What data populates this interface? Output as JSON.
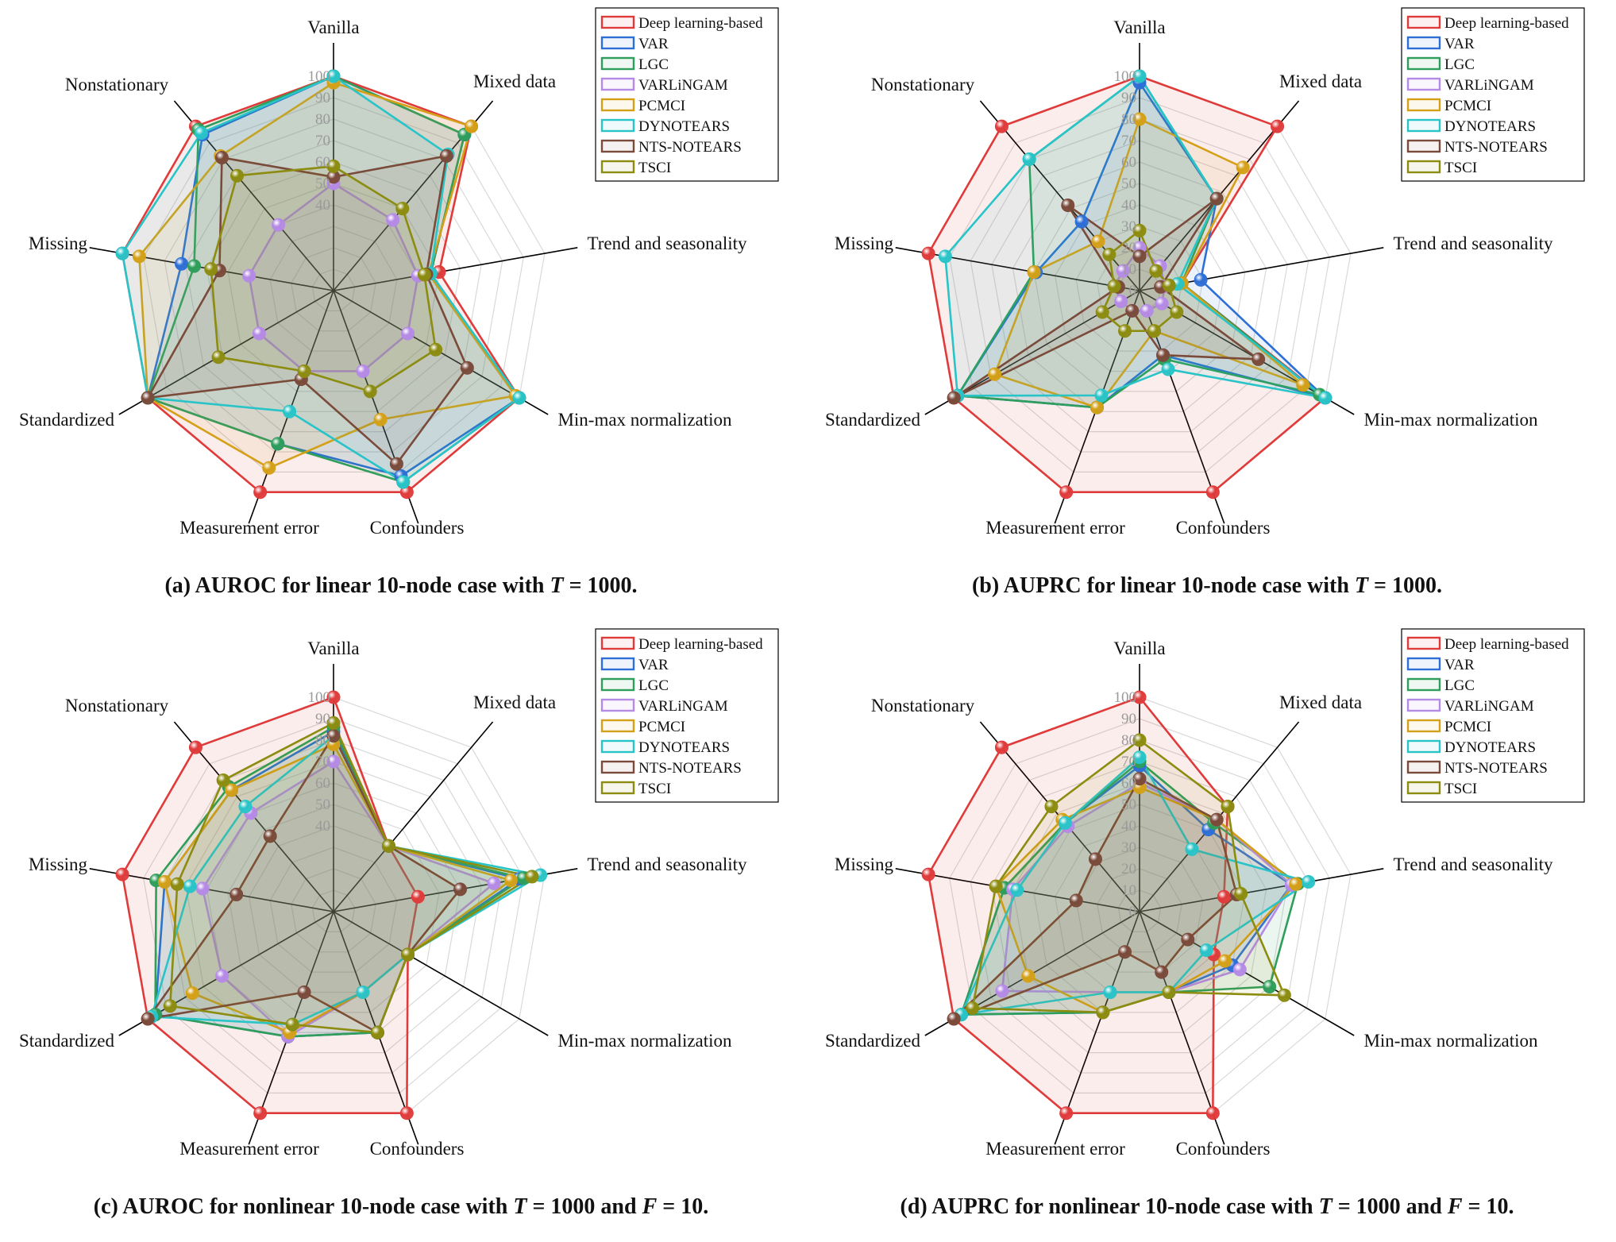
{
  "chart_data": [
    {
      "type": "radar",
      "caption_parts": [
        "(a) AUROC for linear 10-node case with ",
        "T",
        " = 1000."
      ],
      "axes": [
        "Vanilla",
        "Mixed data",
        "Trend and seasonality",
        "Min-max normalization",
        "Confounders",
        "Measurement error",
        "Standardized",
        "Missing",
        "Nonstationary"
      ],
      "rlim": [
        0,
        100
      ],
      "ticks": [
        "40",
        "50",
        "60",
        "70",
        "80",
        "90",
        "100"
      ],
      "tick_values": [
        40,
        50,
        60,
        70,
        80,
        90,
        100
      ],
      "legend_position": "top-right",
      "series": [
        {
          "name": "Deep learning-based",
          "color": "#e03b3b",
          "values": [
            100,
            100,
            50,
            100,
            100,
            100,
            100,
            100,
            100
          ]
        },
        {
          "name": "VAR",
          "color": "#2e6fd6",
          "values": [
            100,
            95,
            46,
            100,
            92,
            76,
            100,
            72,
            95
          ]
        },
        {
          "name": "LGC",
          "color": "#2e9e5a",
          "values": [
            100,
            95,
            46,
            100,
            95,
            76,
            100,
            66,
            98
          ]
        },
        {
          "name": "VARLiNGAM",
          "color": "#b58ae6",
          "values": [
            50,
            43,
            40,
            40,
            40,
            40,
            40,
            40,
            40
          ]
        },
        {
          "name": "PCMCI",
          "color": "#d4a017",
          "values": [
            97,
            100,
            45,
            98,
            64,
            88,
            100,
            92,
            82
          ]
        },
        {
          "name": "DYNOTEARS",
          "color": "#29c4c8",
          "values": [
            100,
            83,
            46,
            100,
            95,
            60,
            100,
            100,
            96
          ]
        },
        {
          "name": "NTS-NOTEARS",
          "color": "#7a4a3a",
          "values": [
            53,
            82,
            44,
            72,
            86,
            44,
            100,
            54,
            81
          ]
        },
        {
          "name": "TSCI",
          "color": "#8c8c10",
          "values": [
            58,
            50,
            43,
            55,
            50,
            40,
            62,
            58,
            70
          ]
        }
      ]
    },
    {
      "type": "radar",
      "caption_parts": [
        "(b) AUPRC for linear 10-node case with ",
        "T",
        " = 1000."
      ],
      "axes": [
        "Vanilla",
        "Mixed data",
        "Trend and seasonality",
        "Min-max normalization",
        "Confounders",
        "Measurement error",
        "Standardized",
        "Missing",
        "Nonstationary"
      ],
      "rlim": [
        0,
        100
      ],
      "ticks": [
        "0",
        "10",
        "20",
        "30",
        "40",
        "50",
        "60",
        "70",
        "80",
        "90",
        "100"
      ],
      "tick_values": [
        0,
        10,
        20,
        30,
        40,
        50,
        60,
        70,
        80,
        90,
        100
      ],
      "legend_position": "top-right",
      "series": [
        {
          "name": "Deep learning-based",
          "color": "#e03b3b",
          "values": [
            100,
            100,
            20,
            100,
            100,
            100,
            100,
            100,
            100
          ]
        },
        {
          "name": "VAR",
          "color": "#2e6fd6",
          "values": [
            97,
            56,
            29,
            100,
            32,
            58,
            98,
            49,
            42
          ]
        },
        {
          "name": "LGC",
          "color": "#2e9e5a",
          "values": [
            100,
            56,
            20,
            97,
            34,
            58,
            98,
            50,
            80
          ]
        },
        {
          "name": "VARLiNGAM",
          "color": "#b58ae6",
          "values": [
            20,
            15,
            12,
            12,
            10,
            10,
            10,
            12,
            12
          ]
        },
        {
          "name": "PCMCI",
          "color": "#d4a017",
          "values": [
            80,
            75,
            20,
            88,
            20,
            58,
            78,
            50,
            30
          ]
        },
        {
          "name": "DYNOTEARS",
          "color": "#29c4c8",
          "values": [
            100,
            56,
            18,
            100,
            39,
            52,
            98,
            92,
            80
          ]
        },
        {
          "name": "NTS-NOTEARS",
          "color": "#7a4a3a",
          "values": [
            16,
            56,
            10,
            64,
            32,
            10,
            100,
            10,
            52
          ]
        },
        {
          "name": "TSCI",
          "color": "#8c8c10",
          "values": [
            28,
            12,
            14,
            20,
            20,
            20,
            20,
            12,
            22
          ]
        }
      ]
    },
    {
      "type": "radar",
      "caption_parts": [
        "(c) AUROC for nonlinear 10-node case with ",
        "T",
        " = 1000 and ",
        "F",
        " = 10."
      ],
      "axes": [
        "Vanilla",
        "Mixed data",
        "Trend and seasonality",
        "Min-max normalization",
        "Confounders",
        "Measurement error",
        "Standardized",
        "Missing",
        "Nonstationary"
      ],
      "rlim": [
        0,
        100
      ],
      "ticks": [
        "40",
        "50",
        "60",
        "70",
        "80",
        "90",
        "100"
      ],
      "tick_values": [
        40,
        50,
        60,
        70,
        80,
        90,
        100
      ],
      "legend_position": "top-right",
      "series": [
        {
          "name": "Deep learning-based",
          "color": "#e03b3b",
          "values": [
            100,
            40,
            40,
            40,
            100,
            100,
            100,
            100,
            100
          ]
        },
        {
          "name": "VAR",
          "color": "#2e6fd6",
          "values": [
            84,
            40,
            88,
            40,
            60,
            62,
            96,
            80,
            74
          ]
        },
        {
          "name": "LGC",
          "color": "#2e9e5a",
          "values": [
            86,
            40,
            90,
            40,
            60,
            62,
            96,
            84,
            76
          ]
        },
        {
          "name": "VARLiNGAM",
          "color": "#b58ae6",
          "values": [
            70,
            40,
            76,
            40,
            40,
            62,
            60,
            62,
            60
          ]
        },
        {
          "name": "PCMCI",
          "color": "#d4a017",
          "values": [
            78,
            40,
            84,
            40,
            40,
            60,
            76,
            80,
            74
          ]
        },
        {
          "name": "DYNOTEARS",
          "color": "#29c4c8",
          "values": [
            82,
            40,
            98,
            40,
            40,
            56,
            98,
            68,
            64
          ]
        },
        {
          "name": "NTS-NOTEARS",
          "color": "#7a4a3a",
          "values": [
            82,
            40,
            60,
            40,
            60,
            40,
            100,
            46,
            46
          ]
        },
        {
          "name": "TSCI",
          "color": "#8c8c10",
          "values": [
            88,
            40,
            94,
            40,
            60,
            56,
            88,
            74,
            80
          ]
        }
      ]
    },
    {
      "type": "radar",
      "caption_parts": [
        "(d) AUPRC for nonlinear 10-node case with ",
        "T",
        " = 1000 and ",
        "F",
        " = 10."
      ],
      "axes": [
        "Vanilla",
        "Mixed data",
        "Trend and seasonality",
        "Min-max normalization",
        "Confounders",
        "Measurement error",
        "Standardized",
        "Missing",
        "Nonstationary"
      ],
      "rlim": [
        0,
        100
      ],
      "ticks": [
        "0",
        "10",
        "20",
        "30",
        "40",
        "50",
        "60",
        "70",
        "80",
        "90",
        "100"
      ],
      "tick_values": [
        0,
        10,
        20,
        30,
        40,
        50,
        60,
        70,
        80,
        90,
        100
      ],
      "legend_position": "top-right",
      "series": [
        {
          "name": "Deep learning-based",
          "color": "#e03b3b",
          "values": [
            100,
            64,
            40,
            40,
            100,
            100,
            100,
            100,
            100
          ]
        },
        {
          "name": "VAR",
          "color": "#2e6fd6",
          "values": [
            68,
            50,
            72,
            50,
            40,
            50,
            96,
            64,
            54
          ]
        },
        {
          "name": "LGC",
          "color": "#2e9e5a",
          "values": [
            70,
            54,
            75,
            70,
            40,
            50,
            96,
            64,
            54
          ]
        },
        {
          "name": "VARLiNGAM",
          "color": "#b58ae6",
          "values": [
            60,
            56,
            72,
            54,
            40,
            40,
            74,
            60,
            52
          ]
        },
        {
          "name": "PCMCI",
          "color": "#d4a017",
          "values": [
            58,
            56,
            74,
            46,
            40,
            50,
            60,
            68,
            56
          ]
        },
        {
          "name": "DYNOTEARS",
          "color": "#29c4c8",
          "values": [
            72,
            38,
            80,
            36,
            40,
            40,
            96,
            58,
            54
          ]
        },
        {
          "name": "NTS-NOTEARS",
          "color": "#7a4a3a",
          "values": [
            62,
            56,
            46,
            26,
            30,
            20,
            100,
            30,
            32
          ]
        },
        {
          "name": "TSCI",
          "color": "#8c8c10",
          "values": [
            80,
            64,
            48,
            78,
            40,
            50,
            90,
            68,
            64
          ]
        }
      ]
    }
  ]
}
